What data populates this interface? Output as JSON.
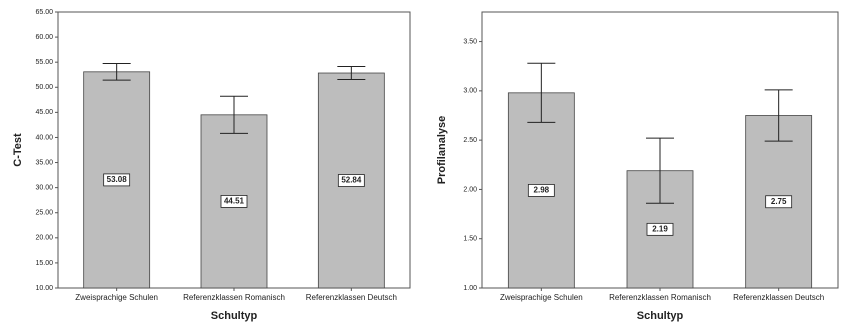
{
  "chart_data": [
    {
      "type": "bar",
      "ylabel": "C-Test",
      "xlabel": "Schultyp",
      "categories": [
        "Zweisprachige Schulen",
        "Referenzklassen Romanisch",
        "Referenzklassen Deutsch"
      ],
      "values": [
        53.08,
        44.51,
        52.84
      ],
      "errors": [
        1.65,
        3.7,
        1.3
      ],
      "color": "#bdbdbd",
      "ylim": [
        10,
        65
      ],
      "yticks": [
        {
          "value": 10,
          "label": "10.00"
        },
        {
          "value": 15,
          "label": "15.00"
        },
        {
          "value": 20,
          "label": "20.00"
        },
        {
          "value": 25,
          "label": "25.00"
        },
        {
          "value": 30,
          "label": "30.00"
        },
        {
          "value": 35,
          "label": "35.00"
        },
        {
          "value": 40,
          "label": "40.00"
        },
        {
          "value": 45,
          "label": "45.00"
        },
        {
          "value": 50,
          "label": "50.00"
        },
        {
          "value": 55,
          "label": "55.00"
        },
        {
          "value": 60,
          "label": "60.00"
        },
        {
          "value": 65,
          "label": "65.00"
        }
      ]
    },
    {
      "type": "bar",
      "ylabel": "Profilanalyse",
      "xlabel": "Schultyp",
      "categories": [
        "Zweisprachige Schulen",
        "Referenzklassen Romanisch",
        "Referenzklassen Deutsch"
      ],
      "values": [
        2.98,
        2.19,
        2.75
      ],
      "errors": [
        0.3,
        0.33,
        0.26
      ],
      "color": "#bdbdbd",
      "ylim": [
        1,
        3.8
      ],
      "yticks": [
        {
          "value": 1,
          "label": "1.00"
        },
        {
          "value": 1.5,
          "label": "1.50"
        },
        {
          "value": 2,
          "label": "2.00"
        },
        {
          "value": 2.5,
          "label": "2.50"
        },
        {
          "value": 3,
          "label": "3.00"
        },
        {
          "value": 3.5,
          "label": "3.50"
        }
      ]
    }
  ]
}
